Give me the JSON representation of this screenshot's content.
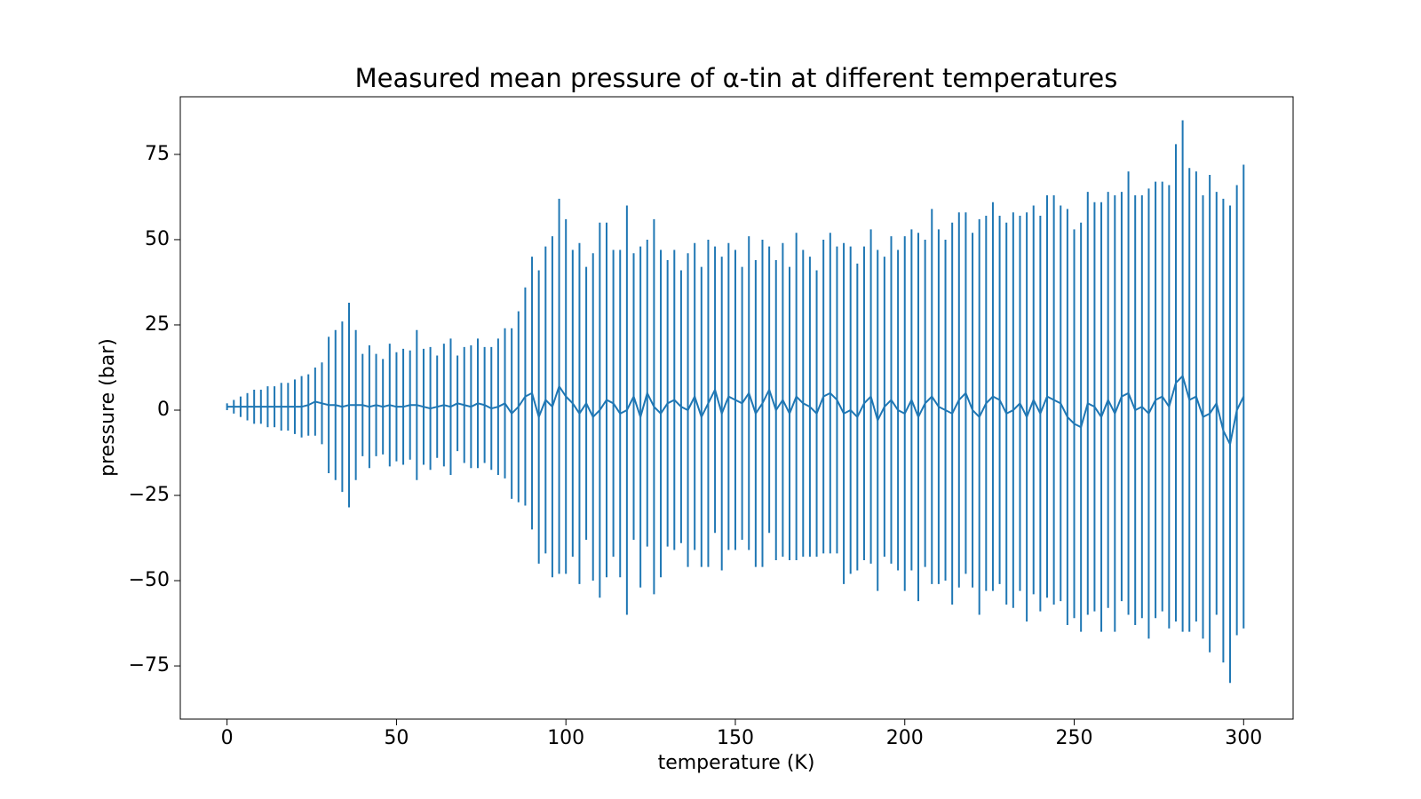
{
  "chart_data": {
    "type": "errorbar",
    "title": "Measured mean pressure of α-tin at different temperatures",
    "x_label": "temperature (K)",
    "y_label": "pressure (bar)",
    "color": "#1f77b4",
    "xlim": [
      -13.8,
      314.6
    ],
    "ylim": [
      -90.6,
      91.9
    ],
    "xticks": [
      0,
      50,
      100,
      150,
      200,
      250,
      300
    ],
    "yticks": [
      {
        "value": -75,
        "label": "−75"
      },
      {
        "value": -50,
        "label": "−50"
      },
      {
        "value": -25,
        "label": "−25"
      },
      0,
      25,
      50,
      75
    ],
    "x": [
      0,
      2,
      4,
      6,
      8,
      10,
      12,
      14,
      16,
      18,
      20,
      22,
      24,
      26,
      28,
      30,
      32,
      34,
      36,
      38,
      40,
      42,
      44,
      46,
      48,
      50,
      52,
      54,
      56,
      58,
      60,
      62,
      64,
      66,
      68,
      70,
      72,
      74,
      76,
      78,
      80,
      82,
      84,
      86,
      88,
      90,
      92,
      94,
      96,
      98,
      100,
      102,
      104,
      106,
      108,
      110,
      112,
      114,
      116,
      118,
      120,
      122,
      124,
      126,
      128,
      130,
      132,
      134,
      136,
      138,
      140,
      142,
      144,
      146,
      148,
      150,
      152,
      154,
      156,
      158,
      160,
      162,
      164,
      166,
      168,
      170,
      172,
      174,
      176,
      178,
      180,
      182,
      184,
      186,
      188,
      190,
      192,
      194,
      196,
      198,
      200,
      202,
      204,
      206,
      208,
      210,
      212,
      214,
      216,
      218,
      220,
      222,
      224,
      226,
      228,
      230,
      232,
      234,
      236,
      238,
      240,
      242,
      244,
      246,
      248,
      250,
      252,
      254,
      256,
      258,
      260,
      262,
      264,
      266,
      268,
      270,
      272,
      274,
      276,
      278,
      280,
      282,
      284,
      286,
      288,
      290,
      292,
      294,
      296,
      298,
      300
    ],
    "values": [
      1,
      1,
      1,
      1,
      1,
      1,
      1,
      1,
      1,
      1,
      1,
      1,
      1.5,
      2.5,
      2,
      1.5,
      1.5,
      1,
      1.5,
      1.5,
      1.5,
      1,
      1.5,
      1,
      1.5,
      1,
      1,
      1.5,
      1.5,
      1,
      0.5,
      1,
      1.5,
      1,
      2,
      1.5,
      1,
      2,
      1.5,
      0.5,
      1,
      2,
      -1,
      1,
      4,
      5,
      -2,
      3,
      1,
      7,
      4,
      2,
      -1,
      2,
      -2,
      0,
      3,
      2,
      -1,
      0,
      4,
      -2,
      5,
      1,
      -1,
      2,
      3,
      1,
      0,
      4,
      -2,
      2,
      6,
      -1,
      4,
      3,
      2,
      5,
      -1,
      2,
      6,
      0,
      3,
      -1,
      4,
      2,
      1,
      -1,
      4,
      5,
      3,
      -1,
      0,
      -2,
      2,
      4,
      -3,
      1,
      3,
      0,
      -1,
      3,
      -2,
      2,
      4,
      1,
      0,
      -1,
      3,
      5,
      0,
      -2,
      2,
      4,
      3,
      -1,
      0,
      2,
      -2,
      3,
      -1,
      4,
      3,
      2,
      -2,
      -4,
      -5,
      2,
      1,
      -2,
      3,
      -1,
      4,
      5,
      0,
      1,
      -1,
      3,
      4,
      1,
      8,
      10,
      3,
      4,
      -2,
      -1,
      2,
      -6,
      -10,
      0,
      4
    ],
    "errors": [
      1,
      2,
      3,
      4,
      5,
      5,
      6,
      6,
      7,
      7,
      8,
      9,
      9,
      10,
      12,
      20,
      22,
      25,
      30,
      22,
      15,
      18,
      15,
      14,
      18,
      16,
      17,
      16,
      22,
      17,
      18,
      15,
      18,
      20,
      14,
      17,
      18,
      19,
      17,
      18,
      20,
      22,
      25,
      28,
      32,
      40,
      43,
      45,
      50,
      55,
      52,
      45,
      50,
      40,
      48,
      55,
      52,
      45,
      48,
      60,
      42,
      50,
      45,
      55,
      48,
      42,
      44,
      40,
      46,
      45,
      44,
      48,
      42,
      46,
      45,
      44,
      40,
      46,
      45,
      48,
      42,
      44,
      46,
      43,
      48,
      45,
      44,
      42,
      46,
      47,
      45,
      50,
      48,
      45,
      46,
      49,
      50,
      44,
      48,
      47,
      52,
      50,
      54,
      48,
      55,
      52,
      50,
      56,
      55,
      53,
      52,
      58,
      55,
      57,
      54,
      56,
      58,
      55,
      60,
      57,
      58,
      59,
      60,
      58,
      61,
      57,
      60,
      62,
      60,
      63,
      61,
      64,
      60,
      65,
      63,
      62,
      66,
      64,
      63,
      65,
      70,
      75,
      68,
      66,
      65,
      70,
      62,
      68,
      70,
      66,
      68
    ]
  }
}
